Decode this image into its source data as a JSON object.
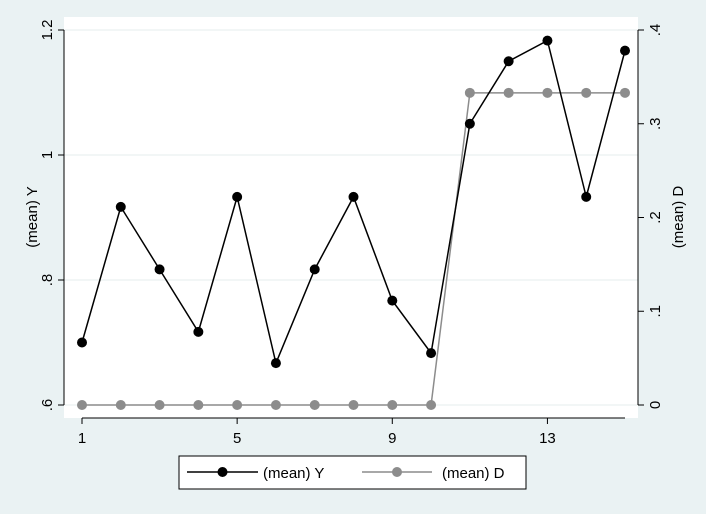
{
  "chart_data": {
    "type": "line",
    "x": [
      1,
      2,
      3,
      4,
      5,
      6,
      7,
      8,
      9,
      10,
      11,
      12,
      13,
      14,
      15
    ],
    "x_ticks": [
      1,
      5,
      9,
      13
    ],
    "x_tick_labels": [
      "1",
      "5",
      "9",
      "13"
    ],
    "xlim": [
      1,
      15
    ],
    "y_left": {
      "label": "(mean) Y",
      "ylim": [
        0.6,
        1.2
      ],
      "ticks": [
        0.6,
        0.8,
        1.0,
        1.2
      ],
      "tick_labels": [
        ".6",
        ".8",
        "1",
        "1.2"
      ]
    },
    "y_right": {
      "label": "(mean) D",
      "ylim": [
        0,
        0.4
      ],
      "ticks": [
        0,
        0.1,
        0.2,
        0.3,
        0.4
      ],
      "tick_labels": [
        "0",
        ".1",
        ".2",
        ".3",
        ".4"
      ]
    },
    "series": [
      {
        "name": "(mean) Y",
        "axis": "left",
        "color": "#000000",
        "values": [
          0.7,
          0.917,
          0.817,
          0.717,
          0.933,
          0.667,
          0.817,
          0.933,
          0.767,
          0.683,
          1.05,
          1.15,
          1.183,
          0.933,
          1.167
        ]
      },
      {
        "name": "(mean) D",
        "axis": "right",
        "color": "#8c8c8c",
        "values": [
          0,
          0,
          0,
          0,
          0,
          0,
          0,
          0,
          0,
          0,
          0.333,
          0.333,
          0.333,
          0.333,
          0.333
        ]
      }
    ],
    "grid": true,
    "legend_position": "bottom"
  },
  "colors": {
    "outer_background": "#eaf2f3",
    "plot_background": "#ffffff",
    "gridline": "#e6eeee",
    "series_y": "#000000",
    "series_d": "#8c8c8c"
  }
}
